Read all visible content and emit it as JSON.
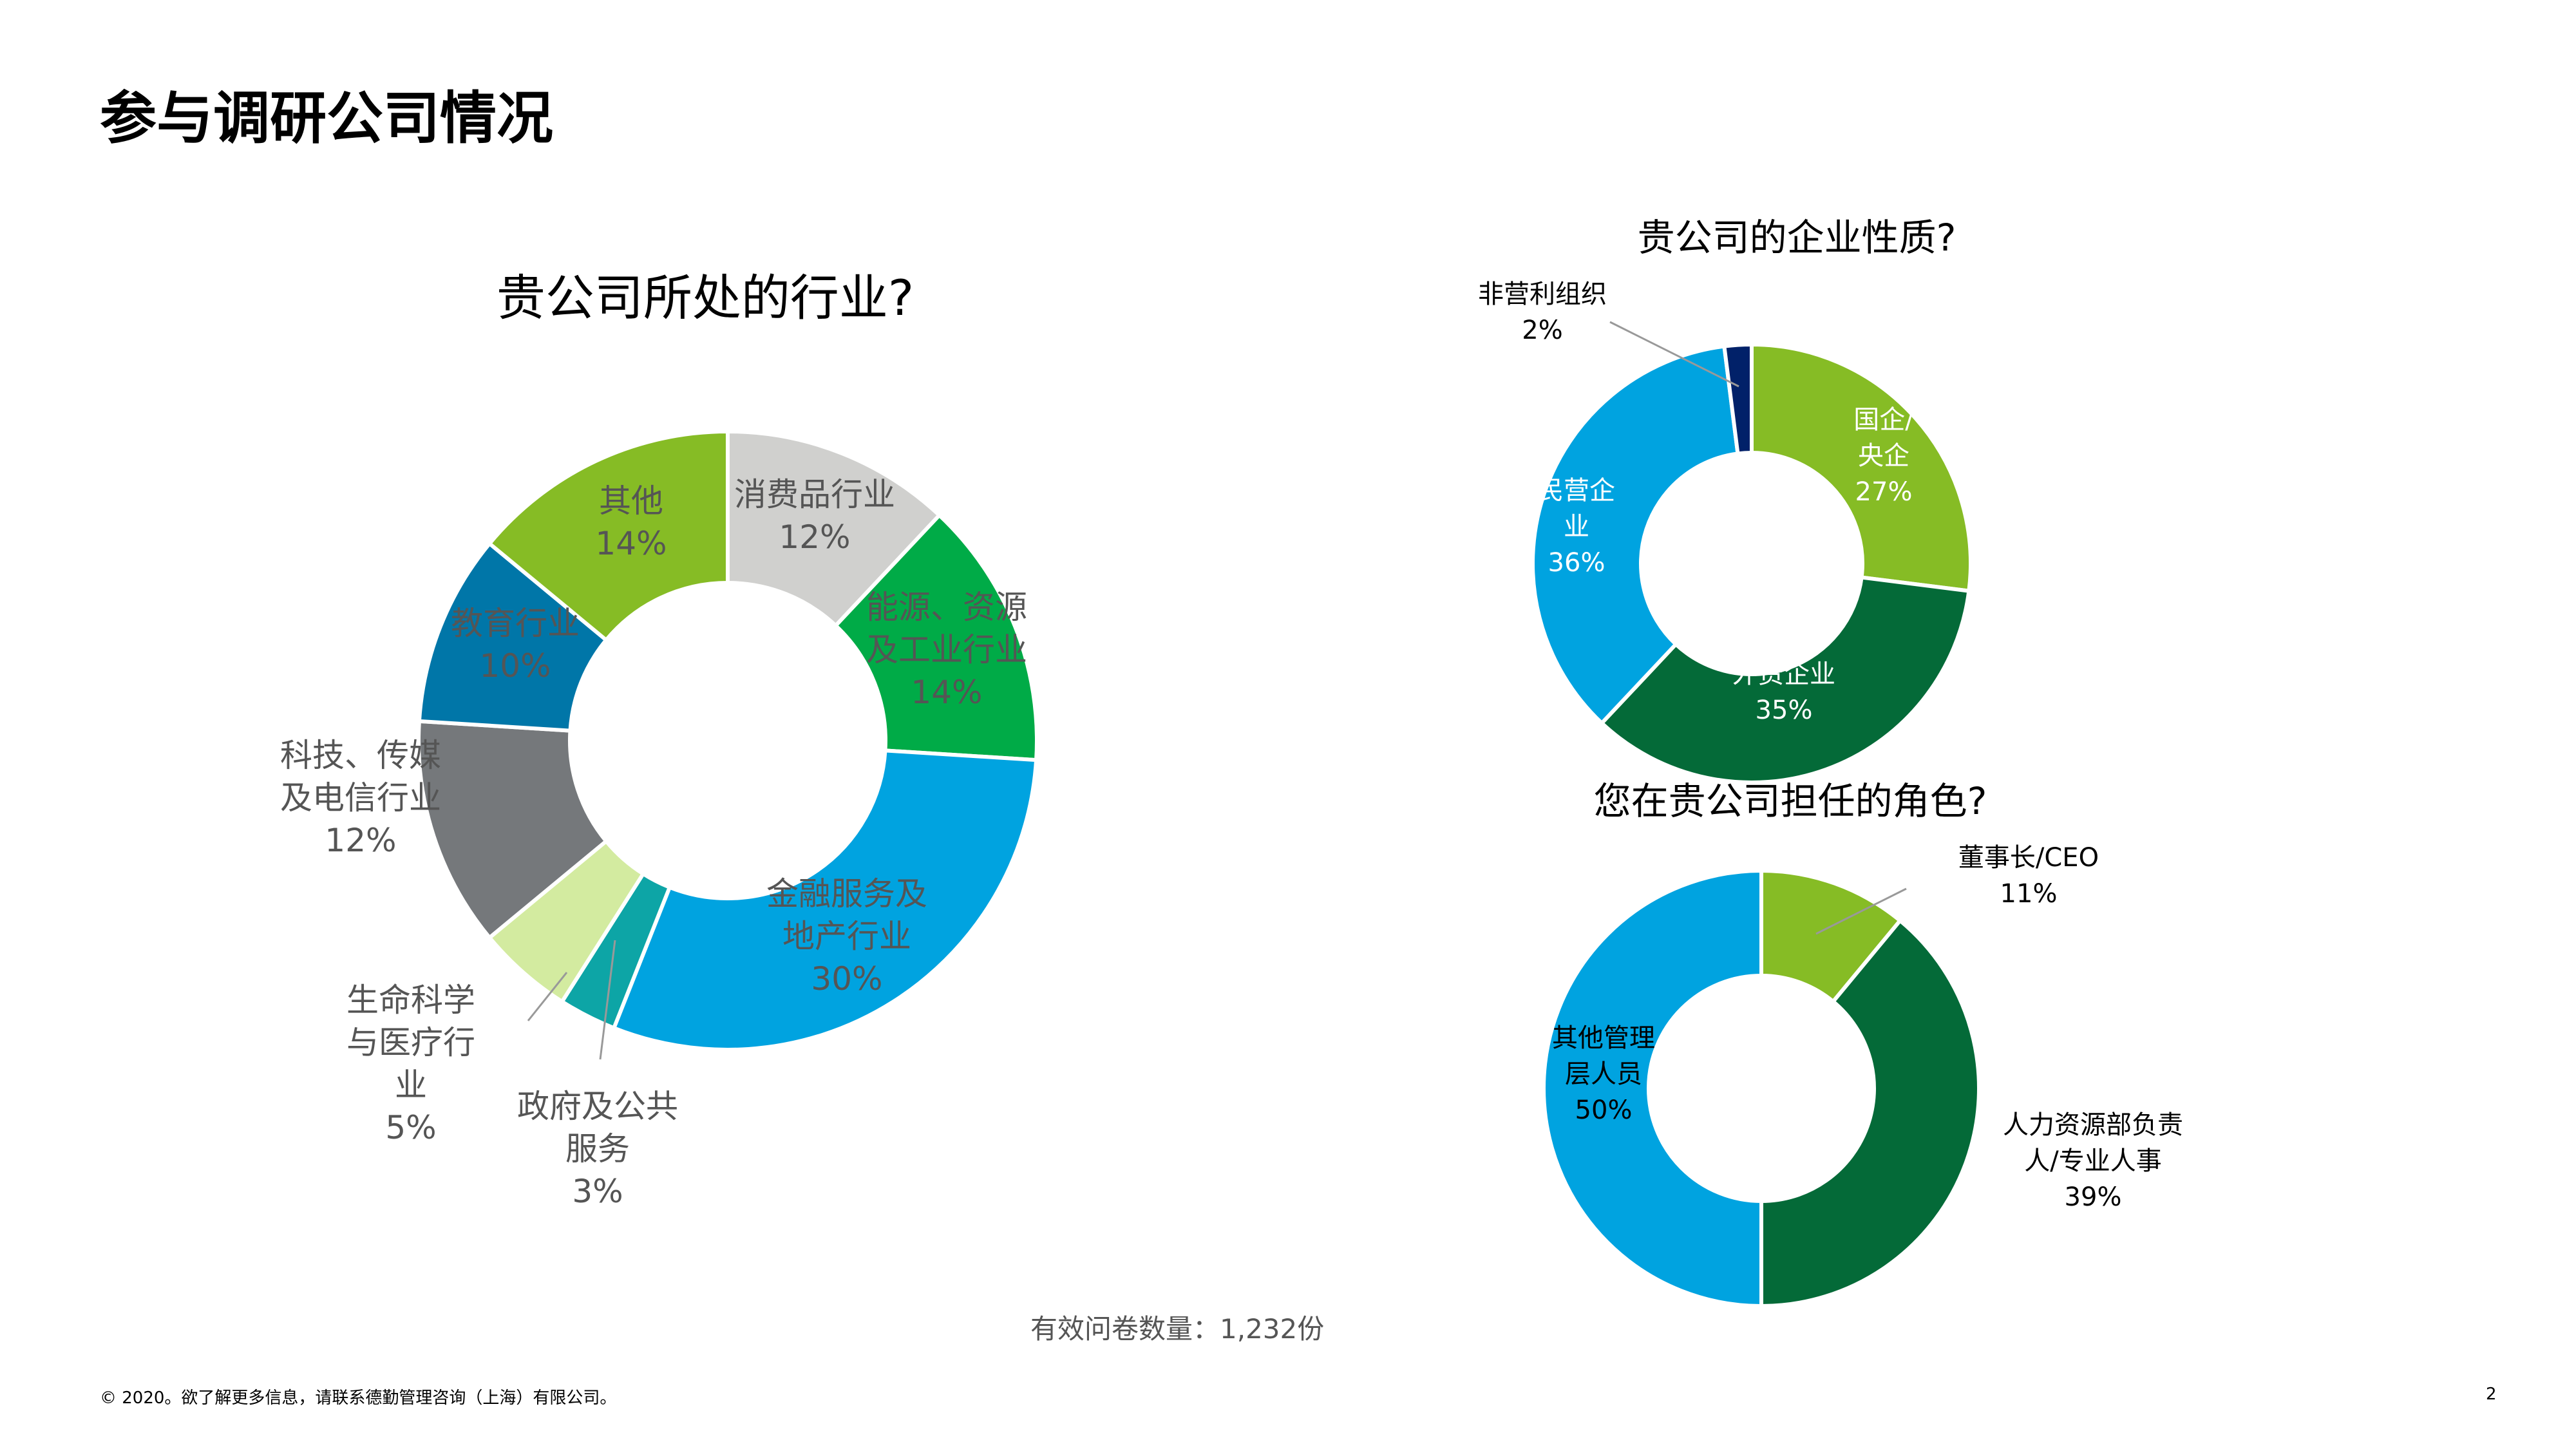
{
  "page_title": "参与调研公司情况",
  "sample_note": "有效问卷数量：1,232份",
  "footer": {
    "copyright": "© 2020。欲了解更多信息，请联系德勤管理咨询（上海）有限公司。",
    "page_number": "2"
  },
  "chart_data": [
    {
      "type": "pie",
      "title": "贵公司所处的行业?",
      "series": [
        {
          "labels": [
            "消费品行业",
            "能源、资源及工业行业",
            "金融服务及地产行业",
            "政府及公共服务",
            "生命科学与医疗行业",
            "科技、传媒及电信行业",
            "教育行业",
            "其他"
          ],
          "values": [
            12,
            14,
            30,
            3,
            5,
            12,
            10,
            14
          ],
          "colors": [
            "#D0D0CE",
            "#00AB47",
            "#00A3E0",
            "#0DA5A6",
            "#D3EBA0",
            "#75787B",
            "#0076A8",
            "#86BC25"
          ]
        }
      ],
      "data_labels": [
        {
          "lines": [
            "消费品行业",
            "12%"
          ]
        },
        {
          "lines": [
            "能源、资源",
            "及工业行业",
            "14%"
          ]
        },
        {
          "lines": [
            "金融服务及",
            "地产行业",
            "30%"
          ]
        },
        {
          "lines": [
            "政府及公共",
            "服务",
            "3%"
          ]
        },
        {
          "lines": [
            "生命科学",
            "与医疗行",
            "业",
            "5%"
          ]
        },
        {
          "lines": [
            "科技、传媒",
            "及电信行业",
            "12%"
          ]
        },
        {
          "lines": [
            "教育行业",
            "10%"
          ]
        },
        {
          "lines": [
            "其他",
            "14%"
          ]
        }
      ]
    },
    {
      "type": "pie",
      "title": "贵公司的企业性质?",
      "series": [
        {
          "labels": [
            "国企/央企",
            "外资企业",
            "民营企业",
            "非营利组织"
          ],
          "values": [
            27,
            35,
            36,
            2
          ],
          "colors": [
            "#86BC25",
            "#046A38",
            "#00A3E0",
            "#012169"
          ]
        }
      ],
      "data_labels": [
        {
          "lines": [
            "国企/",
            "央企",
            "27%"
          ]
        },
        {
          "lines": [
            "外资企业",
            "35%"
          ]
        },
        {
          "lines": [
            "民营企",
            "业",
            "36%"
          ]
        },
        {
          "lines": [
            "非营利组织",
            "2%"
          ]
        }
      ]
    },
    {
      "type": "pie",
      "title": "您在贵公司担任的角色?",
      "series": [
        {
          "labels": [
            "董事长/CEO",
            "人力资源部负责人/专业人事",
            "其他管理层人员"
          ],
          "values": [
            11,
            39,
            50
          ],
          "colors": [
            "#86BC25",
            "#046A38",
            "#00A3E0"
          ]
        }
      ],
      "data_labels": [
        {
          "lines": [
            "董事长/CEO",
            "11%"
          ]
        },
        {
          "lines": [
            "人力资源部负责",
            "人/专业人事",
            "39%"
          ]
        },
        {
          "lines": [
            "其他管理",
            "层人员",
            "50%"
          ]
        }
      ]
    }
  ]
}
